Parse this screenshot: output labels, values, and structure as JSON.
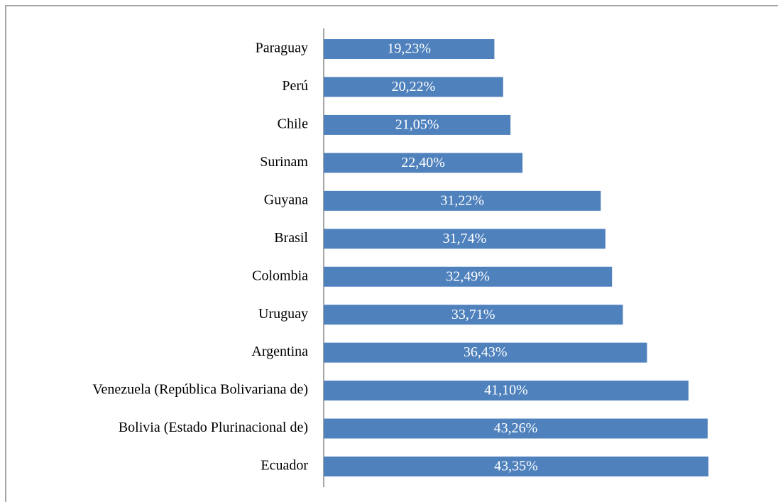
{
  "chart_data": {
    "type": "bar",
    "orientation": "horizontal",
    "color": "#4f81bd",
    "categories": [
      "Paraguay",
      "Perú",
      "Chile",
      "Surinam",
      "Guyana",
      "Brasil",
      "Colombia",
      "Uruguay",
      "Argentina",
      "Venezuela (República Bolivariana de)",
      "Bolivia (Estado Plurinacional de)",
      "Ecuador"
    ],
    "values": [
      19.23,
      20.22,
      21.05,
      22.4,
      31.22,
      31.74,
      32.49,
      33.71,
      36.43,
      41.1,
      43.26,
      43.35
    ],
    "value_labels": [
      "19,23%",
      "20,22%",
      "21,05%",
      "22,40%",
      "31,22%",
      "31,74%",
      "32,49%",
      "33,71%",
      "36,43%",
      "41,10%",
      "43,26%",
      "43,35%"
    ]
  }
}
